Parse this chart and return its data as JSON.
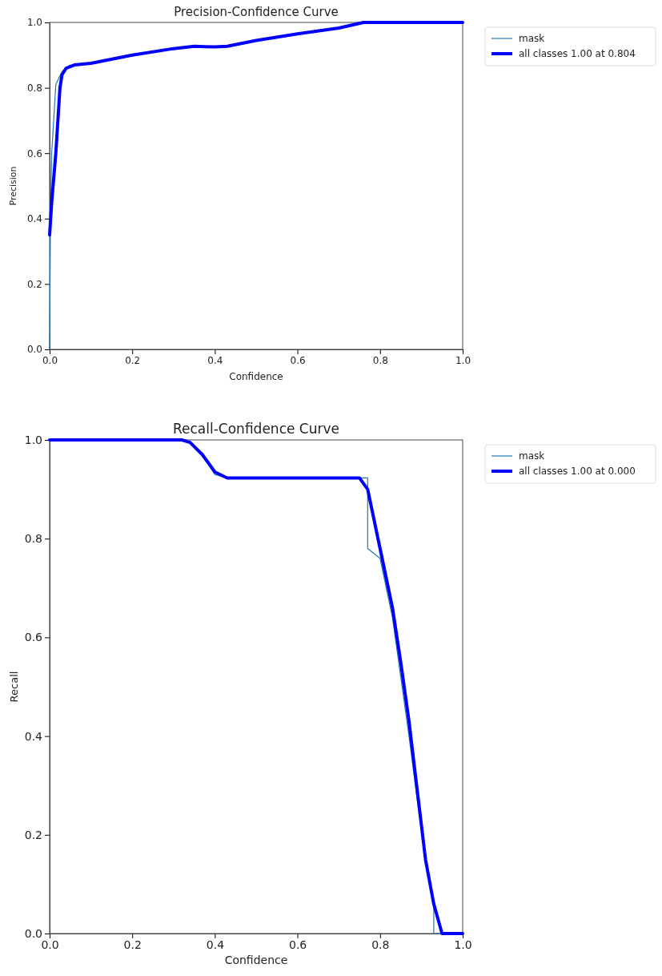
{
  "chart_data": [
    {
      "type": "line",
      "title": "Precision-Confidence Curve",
      "xlabel": "Confidence",
      "ylabel": "Precision",
      "xlim": [
        0,
        1
      ],
      "ylim": [
        0,
        1
      ],
      "xticks": [
        {
          "value": 0,
          "label": "0.0"
        },
        {
          "value": 0.2,
          "label": "0.2"
        },
        {
          "value": 0.4,
          "label": "0.4"
        },
        {
          "value": 0.6,
          "label": "0.6"
        },
        {
          "value": 0.8,
          "label": "0.8"
        },
        {
          "value": 1,
          "label": "1.0"
        }
      ],
      "yticks": [
        {
          "value": 0,
          "label": "0.0"
        },
        {
          "value": 0.2,
          "label": "0.2"
        },
        {
          "value": 0.4,
          "label": "0.4"
        },
        {
          "value": 0.6,
          "label": "0.6"
        },
        {
          "value": 0.8,
          "label": "0.8"
        },
        {
          "value": 1,
          "label": "1.0"
        }
      ],
      "legend": "right",
      "series": [
        {
          "name": "mask",
          "color": "#1f77b4",
          "x": [
            0,
            0.002,
            0.005,
            0.015,
            0.03,
            0.05
          ],
          "values": [
            0,
            0.4,
            0.6,
            0.81,
            0.85,
            0.87
          ]
        },
        {
          "name": "all classes 1.00 at 0.804",
          "color": "#0000ff",
          "x": [
            0,
            0.005,
            0.015,
            0.025,
            0.03,
            0.04,
            0.06,
            0.1,
            0.2,
            0.3,
            0.35,
            0.4,
            0.43,
            0.5,
            0.6,
            0.7,
            0.76,
            0.804,
            1
          ],
          "values": [
            0.35,
            0.45,
            0.6,
            0.8,
            0.84,
            0.86,
            0.87,
            0.875,
            0.9,
            0.92,
            0.927,
            0.925,
            0.927,
            0.945,
            0.965,
            0.983,
            1,
            1,
            1
          ]
        }
      ]
    },
    {
      "type": "line",
      "title": "Recall-Confidence Curve",
      "xlabel": "Confidence",
      "ylabel": "Recall",
      "xlim": [
        0,
        1
      ],
      "ylim": [
        0,
        1
      ],
      "xticks": [
        {
          "value": 0,
          "label": "0.0"
        },
        {
          "value": 0.2,
          "label": "0.2"
        },
        {
          "value": 0.4,
          "label": "0.4"
        },
        {
          "value": 0.6,
          "label": "0.6"
        },
        {
          "value": 0.8,
          "label": "0.8"
        },
        {
          "value": 1,
          "label": "1.0"
        }
      ],
      "yticks": [
        {
          "value": 0,
          "label": "0.0"
        },
        {
          "value": 0.2,
          "label": "0.2"
        },
        {
          "value": 0.4,
          "label": "0.4"
        },
        {
          "value": 0.6,
          "label": "0.6"
        },
        {
          "value": 0.8,
          "label": "0.8"
        },
        {
          "value": 1,
          "label": "1.0"
        }
      ],
      "legend": "right",
      "series": [
        {
          "name": "mask",
          "color": "#1f77b4",
          "x": [
            0.38,
            0.4,
            0.43,
            0.77,
            0.77,
            0.8,
            0.83,
            0.85,
            0.87,
            0.89,
            0.91,
            0.93,
            0.93,
            1
          ],
          "values": [
            0.96,
            0.93,
            0.923,
            0.923,
            0.78,
            0.76,
            0.64,
            0.52,
            0.4,
            0.27,
            0.15,
            0.06,
            0,
            0
          ]
        },
        {
          "name": "all classes 1.00 at 0.000",
          "color": "#0000ff",
          "x": [
            0,
            0.32,
            0.34,
            0.37,
            0.4,
            0.43,
            0.5,
            0.6,
            0.75,
            0.77,
            0.8,
            0.83,
            0.85,
            0.87,
            0.89,
            0.91,
            0.93,
            0.95,
            1
          ],
          "values": [
            1,
            1,
            0.995,
            0.97,
            0.935,
            0.923,
            0.923,
            0.923,
            0.923,
            0.9,
            0.78,
            0.66,
            0.55,
            0.43,
            0.29,
            0.15,
            0.06,
            0,
            0
          ]
        }
      ]
    }
  ]
}
